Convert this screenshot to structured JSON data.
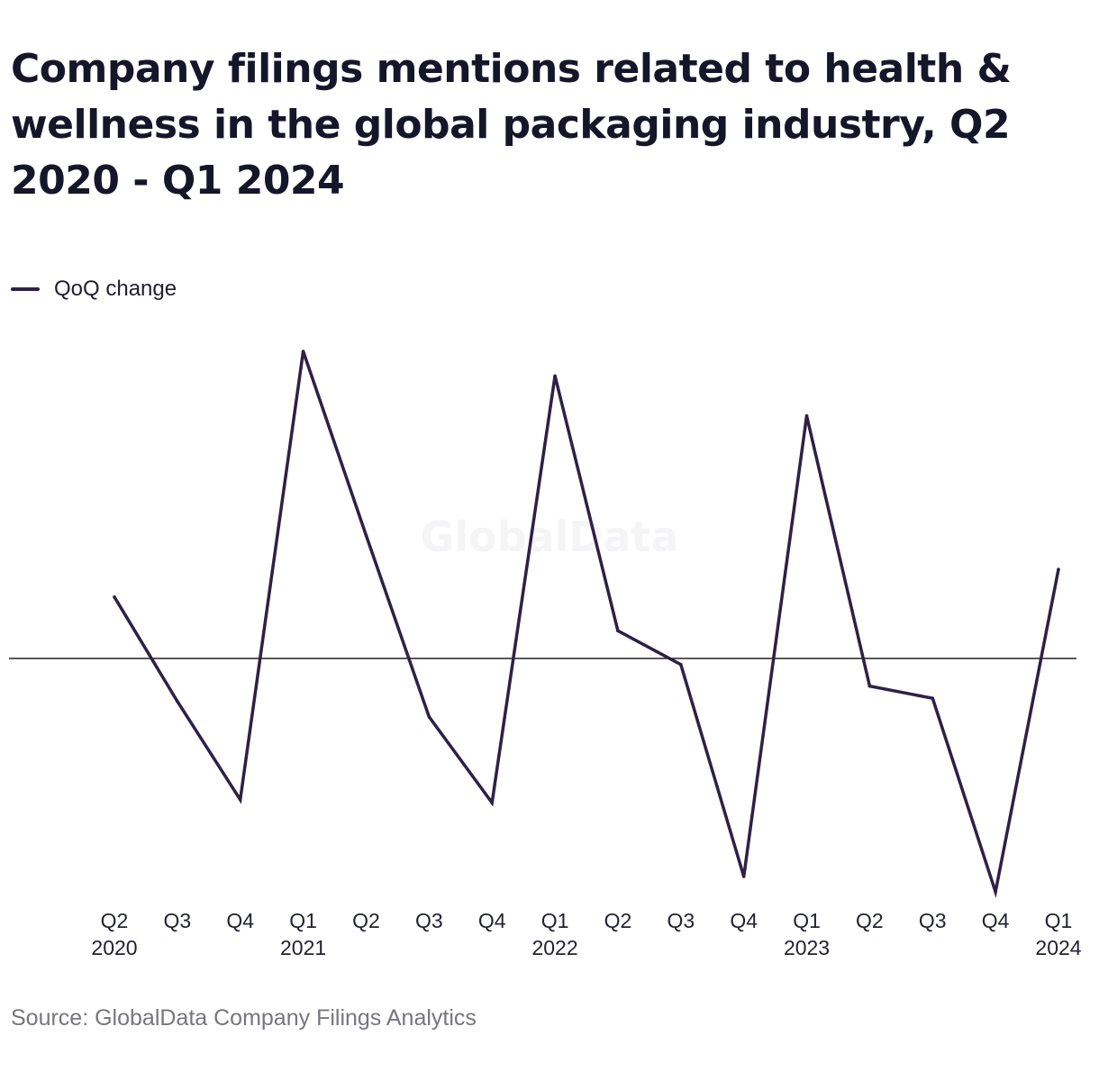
{
  "title": "Company filings mentions related to health & wellness in the global packaging industry, Q2 2020 - Q1 2024",
  "source": "Source: GlobalData Company Filings Analytics",
  "watermark": "GlobalData",
  "colors": {
    "series": "#2d2146",
    "zero_line": "#222222",
    "text": "#16162a",
    "source": "#76767e"
  },
  "chart_data": {
    "type": "line",
    "title": "Company filings mentions related to health & wellness in the global packaging industry, Q2 2020 - Q1 2024",
    "x": [
      "Q2 2020",
      "Q3 2020",
      "Q4 2020",
      "Q1 2021",
      "Q2 2021",
      "Q3 2021",
      "Q4 2021",
      "Q1 2022",
      "Q2 2022",
      "Q3 2022",
      "Q4 2022",
      "Q1 2023",
      "Q2 2023",
      "Q3 2023",
      "Q4 2023",
      "Q1 2024"
    ],
    "tick_labels": [
      {
        "top": "Q2",
        "bottom": "2020"
      },
      {
        "top": "Q3",
        "bottom": ""
      },
      {
        "top": "Q4",
        "bottom": ""
      },
      {
        "top": "Q1",
        "bottom": "2021"
      },
      {
        "top": "Q2",
        "bottom": ""
      },
      {
        "top": "Q3",
        "bottom": ""
      },
      {
        "top": "Q4",
        "bottom": ""
      },
      {
        "top": "Q1",
        "bottom": "2022"
      },
      {
        "top": "Q2",
        "bottom": ""
      },
      {
        "top": "Q3",
        "bottom": ""
      },
      {
        "top": "Q4",
        "bottom": ""
      },
      {
        "top": "Q1",
        "bottom": "2023"
      },
      {
        "top": "Q2",
        "bottom": ""
      },
      {
        "top": "Q3",
        "bottom": ""
      },
      {
        "top": "Q4",
        "bottom": ""
      },
      {
        "top": "Q1",
        "bottom": "2024"
      }
    ],
    "series": [
      {
        "name": "QoQ change",
        "values": [
          20,
          -14,
          -46,
          100,
          40,
          -19,
          -47,
          92,
          9,
          -2,
          -71,
          79,
          -9,
          -13,
          -76,
          29
        ]
      }
    ],
    "ylim": [
      -76,
      100
    ],
    "zero_line": true,
    "grid": false,
    "y_axis_labels": false,
    "legend": "top-left"
  }
}
